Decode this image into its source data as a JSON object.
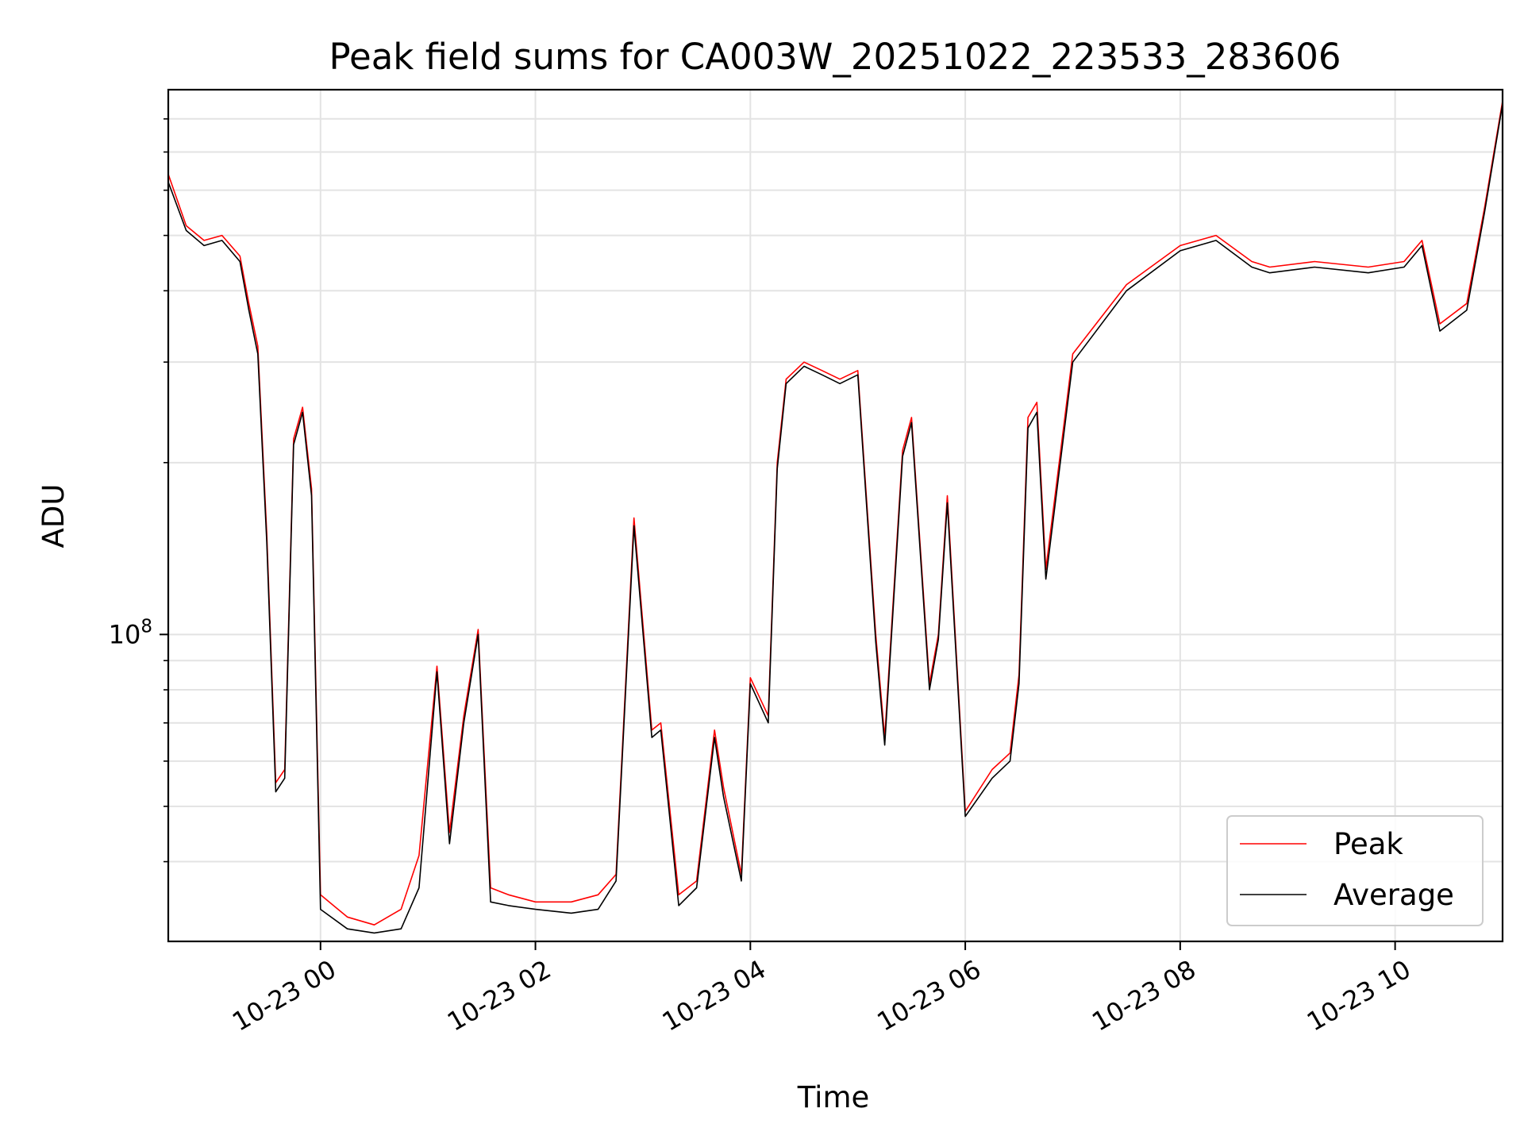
{
  "chart_data": {
    "type": "line",
    "title": "Peak field sums for CA003W_20251022_223533_283606",
    "xlabel": "Time",
    "ylabel": "ADU",
    "y_scale": "log",
    "xlim": [
      "2025-10-22 22:35",
      "2025-10-23 11:00"
    ],
    "ylim": [
      29000000,
      900000000
    ],
    "x_tick_labels": [
      "10-23 00",
      "10-23 02",
      "10-23 04",
      "10-23 06",
      "10-23 08",
      "10-23 10"
    ],
    "x_ticks": [
      "2025-10-23 00:00",
      "2025-10-23 02:00",
      "2025-10-23 04:00",
      "2025-10-23 06:00",
      "2025-10-23 08:00",
      "2025-10-23 10:00"
    ],
    "y_tick_label": {
      "base": "10",
      "exp": "8"
    },
    "y_major_ticks": [
      100000000
    ],
    "y_minor_ticks": [
      40000000,
      50000000,
      60000000,
      70000000,
      80000000,
      90000000,
      200000000,
      300000000,
      400000000,
      500000000,
      600000000,
      700000000,
      800000000
    ],
    "grid": true,
    "legend_position": "lower-right",
    "series": [
      {
        "name": "Peak",
        "color": "#ff0000",
        "x": [
          "2025-10-22 22:35",
          "2025-10-22 22:45",
          "2025-10-22 22:55",
          "2025-10-22 23:05",
          "2025-10-22 23:15",
          "2025-10-22 23:20",
          "2025-10-22 23:25",
          "2025-10-22 23:30",
          "2025-10-22 23:35",
          "2025-10-22 23:40",
          "2025-10-22 23:45",
          "2025-10-22 23:50",
          "2025-10-22 23:55",
          "2025-10-23 00:00",
          "2025-10-23 00:15",
          "2025-10-23 00:30",
          "2025-10-23 00:45",
          "2025-10-23 00:55",
          "2025-10-23 01:05",
          "2025-10-23 01:12",
          "2025-10-23 01:20",
          "2025-10-23 01:28",
          "2025-10-23 01:35",
          "2025-10-23 01:45",
          "2025-10-23 02:00",
          "2025-10-23 02:20",
          "2025-10-23 02:35",
          "2025-10-23 02:45",
          "2025-10-23 02:55",
          "2025-10-23 03:05",
          "2025-10-23 03:10",
          "2025-10-23 03:20",
          "2025-10-23 03:30",
          "2025-10-23 03:40",
          "2025-10-23 03:45",
          "2025-10-23 03:55",
          "2025-10-23 04:00",
          "2025-10-23 04:10",
          "2025-10-23 04:15",
          "2025-10-23 04:20",
          "2025-10-23 04:30",
          "2025-10-23 04:40",
          "2025-10-23 04:50",
          "2025-10-23 05:00",
          "2025-10-23 05:10",
          "2025-10-23 05:15",
          "2025-10-23 05:25",
          "2025-10-23 05:30",
          "2025-10-23 05:40",
          "2025-10-23 05:45",
          "2025-10-23 05:50",
          "2025-10-23 06:00",
          "2025-10-23 06:15",
          "2025-10-23 06:25",
          "2025-10-23 06:30",
          "2025-10-23 06:35",
          "2025-10-23 06:40",
          "2025-10-23 06:45",
          "2025-10-23 07:00",
          "2025-10-23 07:30",
          "2025-10-23 08:00",
          "2025-10-23 08:20",
          "2025-10-23 08:40",
          "2025-10-23 08:50",
          "2025-10-23 09:15",
          "2025-10-23 09:45",
          "2025-10-23 10:05",
          "2025-10-23 10:15",
          "2025-10-23 10:25",
          "2025-10-23 10:40",
          "2025-10-23 10:50",
          "2025-10-23 11:00"
        ],
        "y": [
          640000000,
          520000000,
          490000000,
          500000000,
          460000000,
          380000000,
          320000000,
          150000000,
          55000000,
          58000000,
          220000000,
          250000000,
          180000000,
          35000000,
          32000000,
          31000000,
          33000000,
          41000000,
          88000000,
          45000000,
          72000000,
          102000000,
          36000000,
          35000000,
          34000000,
          34000000,
          35000000,
          38000000,
          160000000,
          68000000,
          70000000,
          35000000,
          37000000,
          68000000,
          54000000,
          38000000,
          84000000,
          72000000,
          200000000,
          280000000,
          300000000,
          290000000,
          280000000,
          290000000,
          100000000,
          66000000,
          210000000,
          240000000,
          82000000,
          100000000,
          175000000,
          49000000,
          58000000,
          62000000,
          85000000,
          240000000,
          255000000,
          130000000,
          310000000,
          410000000,
          480000000,
          500000000,
          450000000,
          440000000,
          450000000,
          440000000,
          450000000,
          490000000,
          350000000,
          380000000,
          560000000,
          860000000
        ]
      },
      {
        "name": "Average",
        "color": "#000000",
        "x": [
          "2025-10-22 22:35",
          "2025-10-22 22:45",
          "2025-10-22 22:55",
          "2025-10-22 23:05",
          "2025-10-22 23:15",
          "2025-10-22 23:20",
          "2025-10-22 23:25",
          "2025-10-22 23:30",
          "2025-10-22 23:35",
          "2025-10-22 23:40",
          "2025-10-22 23:45",
          "2025-10-22 23:50",
          "2025-10-22 23:55",
          "2025-10-23 00:00",
          "2025-10-23 00:15",
          "2025-10-23 00:30",
          "2025-10-23 00:45",
          "2025-10-23 00:55",
          "2025-10-23 01:05",
          "2025-10-23 01:12",
          "2025-10-23 01:20",
          "2025-10-23 01:28",
          "2025-10-23 01:35",
          "2025-10-23 01:45",
          "2025-10-23 02:00",
          "2025-10-23 02:20",
          "2025-10-23 02:35",
          "2025-10-23 02:45",
          "2025-10-23 02:55",
          "2025-10-23 03:05",
          "2025-10-23 03:10",
          "2025-10-23 03:20",
          "2025-10-23 03:30",
          "2025-10-23 03:40",
          "2025-10-23 03:45",
          "2025-10-23 03:55",
          "2025-10-23 04:00",
          "2025-10-23 04:10",
          "2025-10-23 04:15",
          "2025-10-23 04:20",
          "2025-10-23 04:30",
          "2025-10-23 04:40",
          "2025-10-23 04:50",
          "2025-10-23 05:00",
          "2025-10-23 05:10",
          "2025-10-23 05:15",
          "2025-10-23 05:25",
          "2025-10-23 05:30",
          "2025-10-23 05:40",
          "2025-10-23 05:45",
          "2025-10-23 05:50",
          "2025-10-23 06:00",
          "2025-10-23 06:15",
          "2025-10-23 06:25",
          "2025-10-23 06:30",
          "2025-10-23 06:35",
          "2025-10-23 06:40",
          "2025-10-23 06:45",
          "2025-10-23 07:00",
          "2025-10-23 07:30",
          "2025-10-23 08:00",
          "2025-10-23 08:20",
          "2025-10-23 08:40",
          "2025-10-23 08:50",
          "2025-10-23 09:15",
          "2025-10-23 09:45",
          "2025-10-23 10:05",
          "2025-10-23 10:15",
          "2025-10-23 10:25",
          "2025-10-23 10:40",
          "2025-10-23 10:50",
          "2025-10-23 11:00"
        ],
        "y": [
          620000000,
          510000000,
          480000000,
          490000000,
          450000000,
          370000000,
          310000000,
          145000000,
          53000000,
          56000000,
          215000000,
          245000000,
          175000000,
          33000000,
          30500000,
          30000000,
          30500000,
          36000000,
          86000000,
          43000000,
          70000000,
          100000000,
          34000000,
          33500000,
          33000000,
          32500000,
          33000000,
          37000000,
          155000000,
          66000000,
          68000000,
          33500000,
          36000000,
          66000000,
          52000000,
          37000000,
          82000000,
          70000000,
          195000000,
          275000000,
          295000000,
          285000000,
          275000000,
          285000000,
          97000000,
          64000000,
          205000000,
          235000000,
          80000000,
          98000000,
          170000000,
          48000000,
          56000000,
          60000000,
          82000000,
          230000000,
          245000000,
          125000000,
          300000000,
          400000000,
          470000000,
          490000000,
          440000000,
          430000000,
          440000000,
          430000000,
          440000000,
          480000000,
          340000000,
          370000000,
          550000000,
          850000000
        ]
      }
    ]
  }
}
